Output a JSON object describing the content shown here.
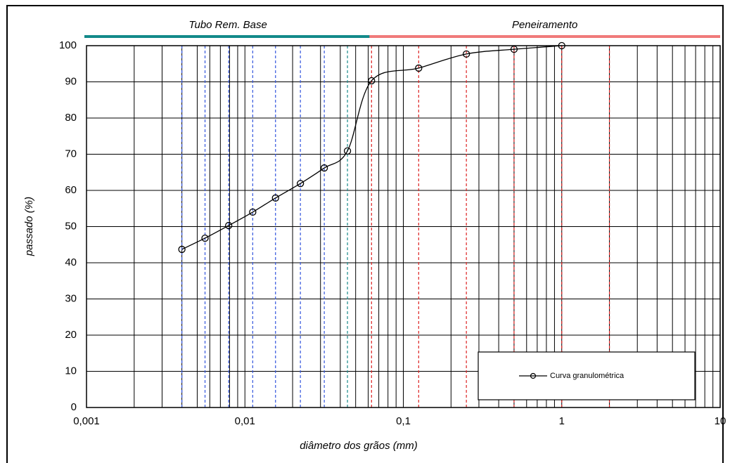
{
  "chart_data": {
    "type": "line",
    "x_label": "diâmetro dos grãos  (mm)",
    "y_label": "passado  (%)",
    "x_log": true,
    "grid": true,
    "minor_grid": true,
    "xlim": [
      0.001,
      10
    ],
    "ylim": [
      0,
      100
    ],
    "xticks": [
      {
        "value": 0.001,
        "label": "0,001"
      },
      {
        "value": 0.01,
        "label": "0,01"
      },
      {
        "value": 0.1,
        "label": "0,1"
      },
      1,
      10
    ],
    "yticks": [
      0,
      10,
      20,
      30,
      40,
      50,
      60,
      70,
      80,
      90,
      100
    ],
    "legend": "lower right",
    "series": [
      {
        "name": "Curva granulométrica",
        "color": "#000000",
        "x": [
          0.004,
          0.0056,
          0.0079,
          0.0112,
          0.0156,
          0.0224,
          0.0317,
          0.0444,
          0.063,
          0.125,
          0.25,
          0.5,
          1
        ],
        "values": [
          43.7,
          46.8,
          50.3,
          54,
          57.9,
          61.9,
          66.2,
          70.9,
          90.3,
          93.8,
          97.7,
          99,
          100
        ]
      }
    ],
    "reference_lines": [
      {
        "x": 0.004,
        "color": "#3355dd"
      },
      {
        "x": 0.0056,
        "color": "#3355dd"
      },
      {
        "x": 0.0079,
        "color": "#3355dd"
      },
      {
        "x": 0.0112,
        "color": "#3355dd"
      },
      {
        "x": 0.0156,
        "color": "#3355dd"
      },
      {
        "x": 0.0224,
        "color": "#3355dd"
      },
      {
        "x": 0.0317,
        "color": "#3355dd"
      },
      {
        "x": 0.0444,
        "color": "#1a8a8a"
      },
      {
        "x": 0.063,
        "color": "#dd2222"
      },
      {
        "x": 0.125,
        "color": "#dd2222"
      },
      {
        "x": 0.25,
        "color": "#dd2222"
      },
      {
        "x": 0.5,
        "color": "#dd2222"
      },
      {
        "x": 1,
        "color": "#dd2222"
      },
      {
        "x": 2,
        "color": "#dd2222"
      }
    ],
    "bands": [
      {
        "label": "Tubo Rem. Base",
        "from": 0.001,
        "to": 0.063,
        "color": "#138a8a"
      },
      {
        "label": "Peneiramento",
        "from": 0.063,
        "to": 10,
        "color": "#f07a7a"
      }
    ]
  }
}
